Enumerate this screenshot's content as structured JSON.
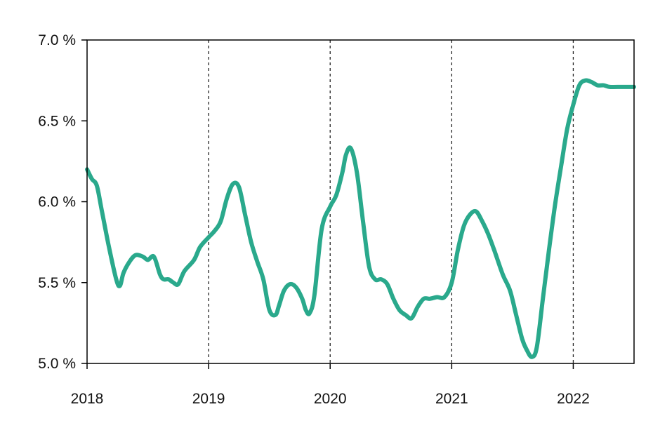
{
  "chart_data": {
    "type": "line",
    "title": "",
    "xlabel": "",
    "ylabel": "",
    "xlim": [
      2018.0,
      2022.5
    ],
    "ylim": [
      5.0,
      7.0
    ],
    "grid": false,
    "vertical_reference_lines": [
      2019,
      2020,
      2021,
      2022
    ],
    "x_ticks": [
      {
        "value": 2018,
        "label": "2018"
      },
      {
        "value": 2019,
        "label": "2019"
      },
      {
        "value": 2020,
        "label": "2020"
      },
      {
        "value": 2021,
        "label": "2021"
      },
      {
        "value": 2022,
        "label": "2022"
      }
    ],
    "y_ticks": [
      {
        "value": 5.0,
        "label": "5.0 %"
      },
      {
        "value": 5.5,
        "label": "5.5 %"
      },
      {
        "value": 6.0,
        "label": "6.0 %"
      },
      {
        "value": 6.5,
        "label": "6.5 %"
      },
      {
        "value": 7.0,
        "label": "7.0 %"
      }
    ],
    "series": [
      {
        "color": "#2aa98c",
        "x": [
          2018.0,
          2018.04,
          2018.08,
          2018.12,
          2018.18,
          2018.24,
          2018.27,
          2018.3,
          2018.35,
          2018.4,
          2018.46,
          2018.5,
          2018.55,
          2018.6,
          2018.63,
          2018.67,
          2018.71,
          2018.75,
          2018.8,
          2018.88,
          2018.93,
          2019.0,
          2019.05,
          2019.1,
          2019.15,
          2019.2,
          2019.25,
          2019.3,
          2019.35,
          2019.4,
          2019.45,
          2019.5,
          2019.55,
          2019.58,
          2019.62,
          2019.67,
          2019.72,
          2019.77,
          2019.8,
          2019.83,
          2019.87,
          2019.93,
          2020.0,
          2020.05,
          2020.1,
          2020.13,
          2020.17,
          2020.22,
          2020.27,
          2020.32,
          2020.37,
          2020.42,
          2020.47,
          2020.52,
          2020.57,
          2020.62,
          2020.67,
          2020.72,
          2020.77,
          2020.82,
          2020.88,
          2020.94,
          2021.0,
          2021.05,
          2021.1,
          2021.15,
          2021.2,
          2021.25,
          2021.3,
          2021.35,
          2021.42,
          2021.48,
          2021.53,
          2021.58,
          2021.62,
          2021.66,
          2021.7,
          2021.75,
          2021.8,
          2021.85,
          2021.9,
          2021.95,
          2022.0,
          2022.05,
          2022.1,
          2022.15,
          2022.2,
          2022.25,
          2022.3,
          2022.4,
          2022.5
        ],
        "y": [
          6.2,
          6.14,
          6.1,
          5.95,
          5.72,
          5.52,
          5.48,
          5.56,
          5.63,
          5.67,
          5.66,
          5.64,
          5.66,
          5.55,
          5.52,
          5.52,
          5.5,
          5.49,
          5.57,
          5.64,
          5.72,
          5.78,
          5.82,
          5.88,
          6.02,
          6.11,
          6.09,
          5.92,
          5.75,
          5.63,
          5.52,
          5.33,
          5.3,
          5.36,
          5.45,
          5.49,
          5.47,
          5.4,
          5.33,
          5.31,
          5.42,
          5.83,
          5.97,
          6.04,
          6.18,
          6.29,
          6.33,
          6.18,
          5.88,
          5.6,
          5.52,
          5.52,
          5.49,
          5.4,
          5.33,
          5.3,
          5.28,
          5.35,
          5.4,
          5.4,
          5.41,
          5.41,
          5.5,
          5.7,
          5.85,
          5.92,
          5.94,
          5.88,
          5.8,
          5.7,
          5.55,
          5.45,
          5.3,
          5.15,
          5.08,
          5.04,
          5.1,
          5.4,
          5.7,
          5.98,
          6.22,
          6.45,
          6.6,
          6.72,
          6.75,
          6.74,
          6.72,
          6.72,
          6.71,
          6.71,
          6.71
        ]
      }
    ]
  }
}
